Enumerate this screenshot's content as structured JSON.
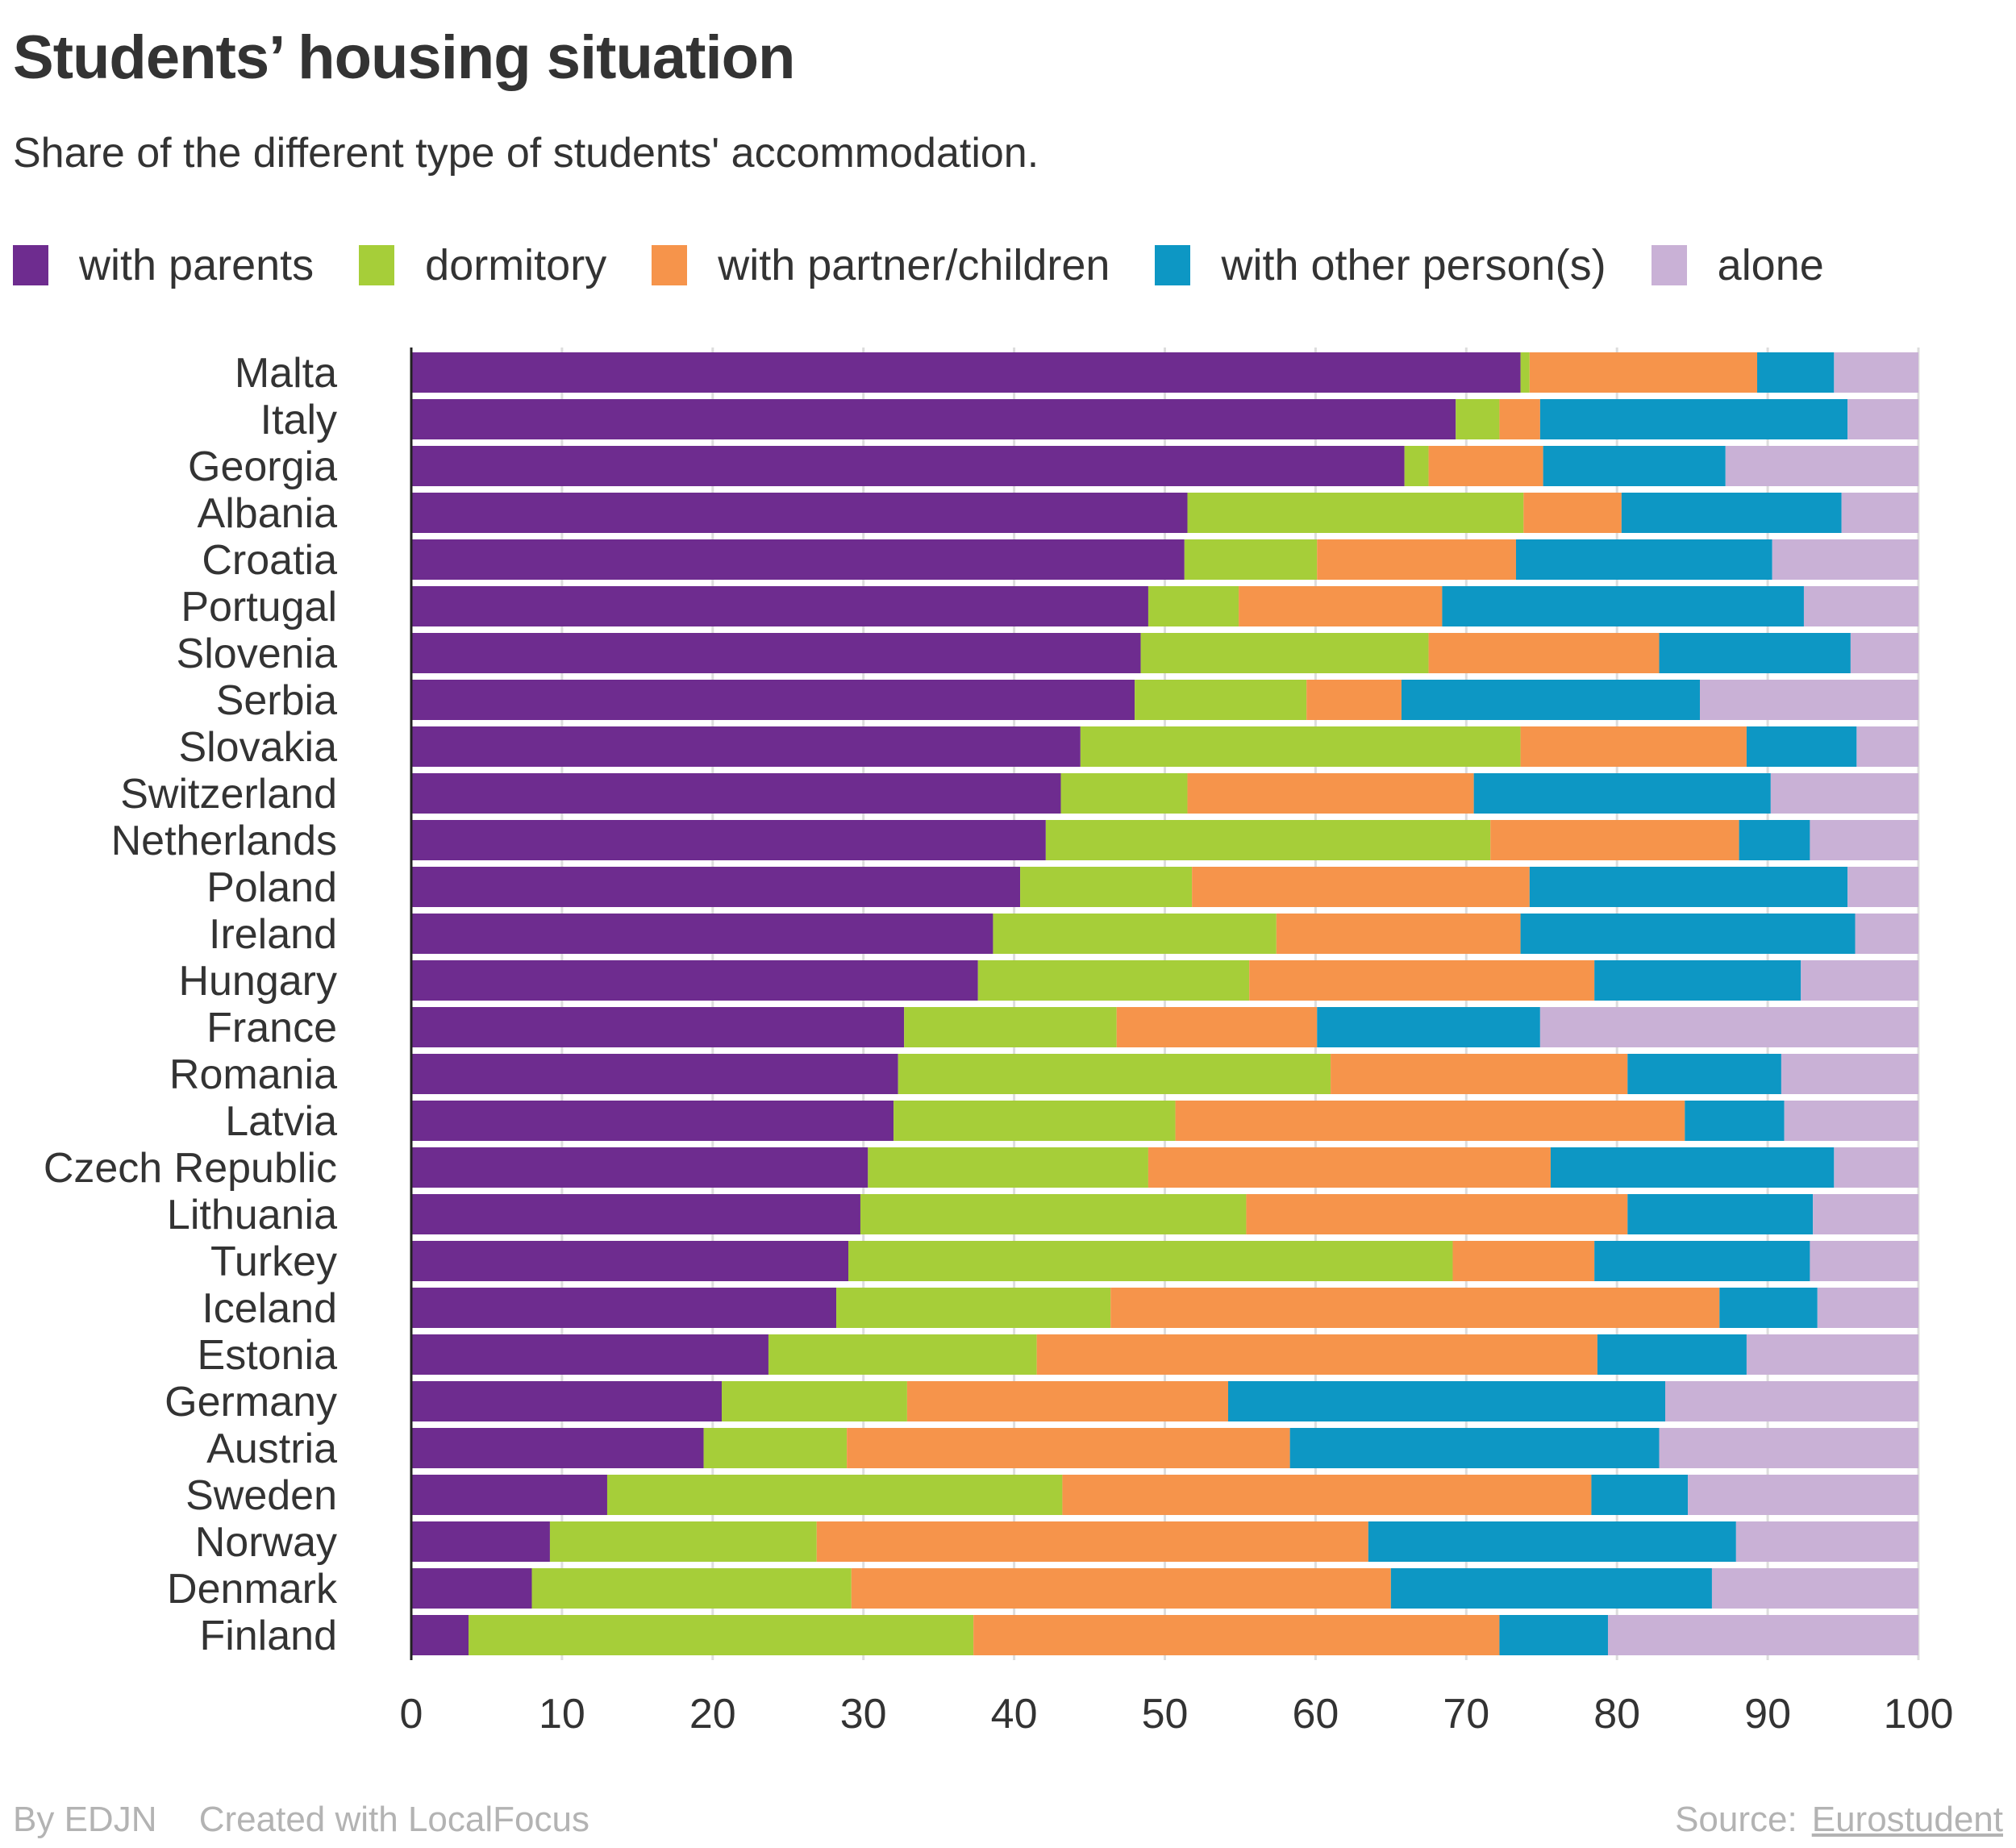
{
  "header": {
    "title": "Students’ housing situation",
    "subtitle": "Share of the different type of students' accommodation."
  },
  "footer": {
    "byline": "By EDJN",
    "credit": "Created with LocalFocus",
    "source_label": "Source:",
    "source_link": "Eurostudent"
  },
  "chart_data": {
    "type": "bar",
    "orientation": "horizontal",
    "stacked": true,
    "title": "Students’ housing situation",
    "subtitle": "Share of the different type of students' accommodation.",
    "xlabel": "",
    "ylabel": "",
    "xlim": [
      0,
      100
    ],
    "xticks": [
      0,
      10,
      20,
      30,
      40,
      50,
      60,
      70,
      80,
      90,
      100
    ],
    "grid": true,
    "legend_position": "top",
    "categories": [
      "Malta",
      "Italy",
      "Georgia",
      "Albania",
      "Croatia",
      "Portugal",
      "Slovenia",
      "Serbia",
      "Slovakia",
      "Switzerland",
      "Netherlands",
      "Poland",
      "Ireland",
      "Hungary",
      "France",
      "Romania",
      "Latvia",
      "Czech Republic",
      "Lithuania",
      "Turkey",
      "Iceland",
      "Estonia",
      "Germany",
      "Austria",
      "Sweden",
      "Norway",
      "Denmark",
      "Finland"
    ],
    "series": [
      {
        "name": "with parents",
        "color": "#6e2c8f",
        "values": [
          73.6,
          69.3,
          65.9,
          51.5,
          51.3,
          48.9,
          48.4,
          48.0,
          44.4,
          43.1,
          42.1,
          40.4,
          38.6,
          37.6,
          32.7,
          32.3,
          32.0,
          30.3,
          29.8,
          29.0,
          28.2,
          23.7,
          20.6,
          19.4,
          13.0,
          9.2,
          8.0,
          3.8
        ]
      },
      {
        "name": "dormitory",
        "color": "#a6ce39",
        "values": [
          0.6,
          2.9,
          1.6,
          22.3,
          8.8,
          6.0,
          19.1,
          11.4,
          29.2,
          8.4,
          29.5,
          11.4,
          18.8,
          18.0,
          14.1,
          28.7,
          18.7,
          18.6,
          25.6,
          40.1,
          18.2,
          17.8,
          12.3,
          9.5,
          30.2,
          17.7,
          21.2,
          33.5
        ]
      },
      {
        "name": "with partner/children",
        "color": "#f6944b",
        "values": [
          15.1,
          2.7,
          7.6,
          6.5,
          13.2,
          13.5,
          15.3,
          6.3,
          15.0,
          19.0,
          16.5,
          22.4,
          16.2,
          22.9,
          13.3,
          19.7,
          33.8,
          26.7,
          25.3,
          9.4,
          40.4,
          37.2,
          21.3,
          29.4,
          35.1,
          36.6,
          35.8,
          34.9
        ]
      },
      {
        "name": "with other person(s)",
        "color": "#0d97c4",
        "values": [
          5.1,
          20.4,
          12.1,
          14.6,
          17.0,
          24.0,
          12.7,
          19.8,
          7.3,
          19.7,
          4.7,
          21.1,
          22.2,
          13.7,
          14.8,
          10.2,
          6.6,
          18.8,
          12.3,
          14.3,
          6.5,
          9.9,
          29.0,
          24.5,
          6.4,
          24.4,
          21.3,
          7.2
        ]
      },
      {
        "name": "alone",
        "color": "#c9b1d6",
        "values": [
          5.6,
          4.7,
          12.8,
          5.1,
          9.7,
          7.6,
          4.5,
          14.5,
          4.1,
          9.8,
          7.2,
          4.7,
          4.2,
          7.8,
          25.1,
          9.1,
          8.9,
          5.6,
          7.0,
          7.2,
          6.7,
          11.4,
          16.8,
          17.2,
          15.3,
          12.1,
          13.7,
          20.6
        ]
      }
    ]
  }
}
